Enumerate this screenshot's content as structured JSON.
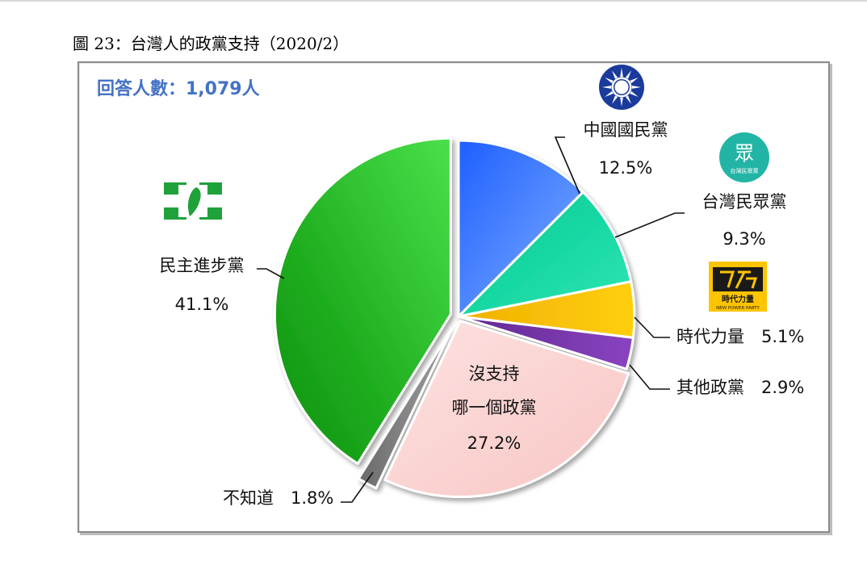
{
  "figure_title": "圖 23：台灣人的政黨支持（2020/2）",
  "respondents_label": "回答人數：1,079人",
  "colors": {
    "kmt": "#2f7bff",
    "tpp": "#12d6a0",
    "npp": "#ffc400",
    "other": "#7030a0",
    "none": "#fcd5d4",
    "unknown": "#808080",
    "dpp": "#22b922",
    "respondents_text": "#4472c4"
  },
  "logos": {
    "kmt": "kmt-sun-emblem-icon",
    "tpp": "tpp-logo-icon",
    "npp": "npp-logo-icon",
    "dpp": "dpp-flag-icon",
    "tpp_logo_text": "眾",
    "tpp_logo_subtext": "台灣民眾黨",
    "npp_logo_text": "時代力量",
    "npp_logo_subtext": "NEW POWER PARTY"
  },
  "chart_data": {
    "type": "pie",
    "start_angle_deg": 0,
    "direction": "clockwise",
    "slices": [
      {
        "key": "kmt",
        "label": "中國國民黨",
        "value": 12.5,
        "value_text": "12.5%"
      },
      {
        "key": "tpp",
        "label": "台灣民眾黨",
        "value": 9.3,
        "value_text": "9.3%"
      },
      {
        "key": "npp",
        "label": "時代力量",
        "value": 5.1,
        "value_text": "5.1%"
      },
      {
        "key": "other",
        "label": "其他政黨",
        "value": 2.9,
        "value_text": "2.9%"
      },
      {
        "key": "none",
        "label_lines": [
          "沒支持",
          "哪一個政黨"
        ],
        "value": 27.2,
        "value_text": "27.2%"
      },
      {
        "key": "unknown",
        "label": "不知道",
        "value": 1.8,
        "value_text": "1.8%"
      },
      {
        "key": "dpp",
        "label": "民主進步黨",
        "value": 41.1,
        "value_text": "41.1%"
      }
    ]
  }
}
